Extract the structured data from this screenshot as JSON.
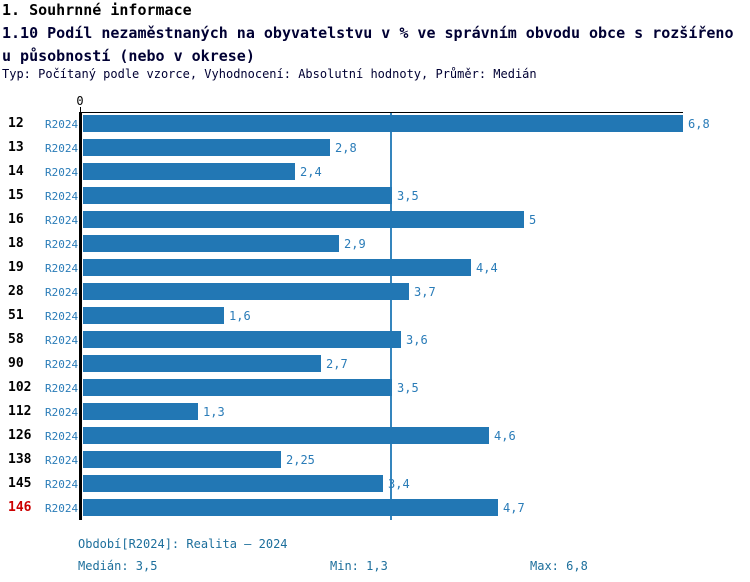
{
  "header": {
    "line1": "1. Souhrnné informace",
    "line2": "1.10 Podíl nezaměstnaných na obyvatelstvu v % ve správním obvodu obce s rozšířeno",
    "line3": "u působností (nebo v okrese)",
    "meta": "Typ: Počítaný podle vzorce, Vyhodnocení: Absolutní hodnoty, Průměr: Medián"
  },
  "chart_data": {
    "type": "bar",
    "orientation": "horizontal",
    "title": "Podíl nezaměstnaných na obyvatelstvu v % ve správním obvodu obce s rozšířenou působností (nebo v okrese)",
    "categories": [
      "12",
      "13",
      "14",
      "15",
      "16",
      "18",
      "19",
      "28",
      "51",
      "58",
      "90",
      "102",
      "112",
      "126",
      "138",
      "145",
      "146"
    ],
    "series": [
      {
        "name": "R2024",
        "values": [
          6.8,
          2.8,
          2.4,
          3.5,
          5,
          2.9,
          4.4,
          3.7,
          1.6,
          3.6,
          2.7,
          3.5,
          1.3,
          4.6,
          2.25,
          3.4,
          4.7
        ]
      }
    ],
    "xlim": [
      0,
      6.8
    ],
    "axis_zero_label": "0",
    "median_line_value": 3.5,
    "highlight_category": "146",
    "legend_position": "none",
    "grid": false
  },
  "footer": {
    "period": "Období[R2024]: Realita – 2024",
    "median": "Medián: 3,5",
    "min": "Min: 1,3",
    "max": "Max: 6,8"
  },
  "colors": {
    "bar": "#2277b4",
    "median_line": "#3585bd",
    "blue_text": "#2a7cb8",
    "footer_text": "#1d6f9c",
    "highlight_red": "#cc0000",
    "title1": "#000000",
    "title2": "#000033"
  }
}
